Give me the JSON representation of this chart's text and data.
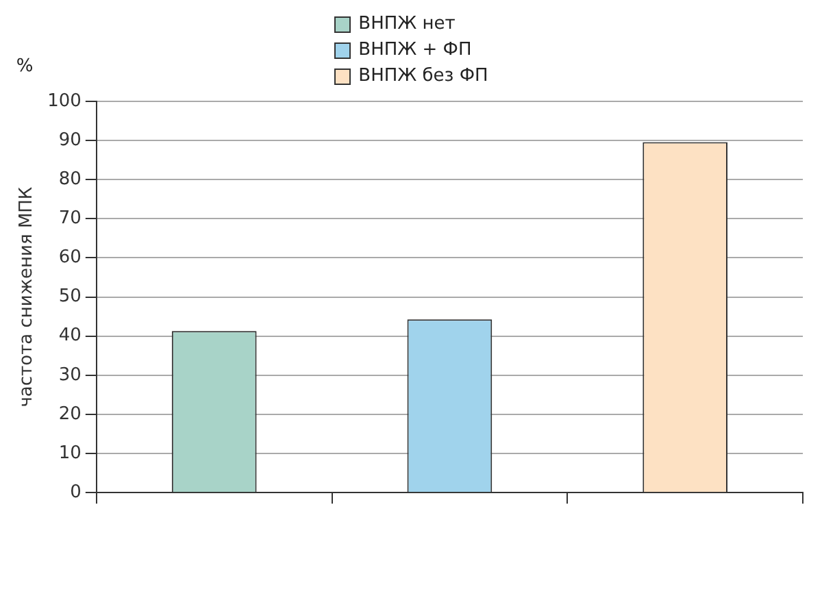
{
  "chart_data": {
    "type": "bar",
    "ylabel": "частота снижения МПК",
    "annotations": [
      "%"
    ],
    "categories": [
      null,
      null,
      null
    ],
    "series": [
      {
        "name": "ВНПЖ нет",
        "color": "#a8d3c8",
        "values": [
          41.3,
          null,
          null
        ]
      },
      {
        "name": "ВНПЖ + ФП",
        "color": "#a0d3ec",
        "values": [
          null,
          44.3,
          null
        ]
      },
      {
        "name": "ВНПЖ без ФП",
        "color": "#fde1c3",
        "values": [
          null,
          null,
          89.6
        ]
      }
    ],
    "ylim": [
      0,
      100
    ],
    "yticks": [
      0,
      10,
      20,
      30,
      40,
      50,
      60,
      70,
      80,
      90,
      100
    ],
    "grid": "y",
    "legend": "top"
  }
}
